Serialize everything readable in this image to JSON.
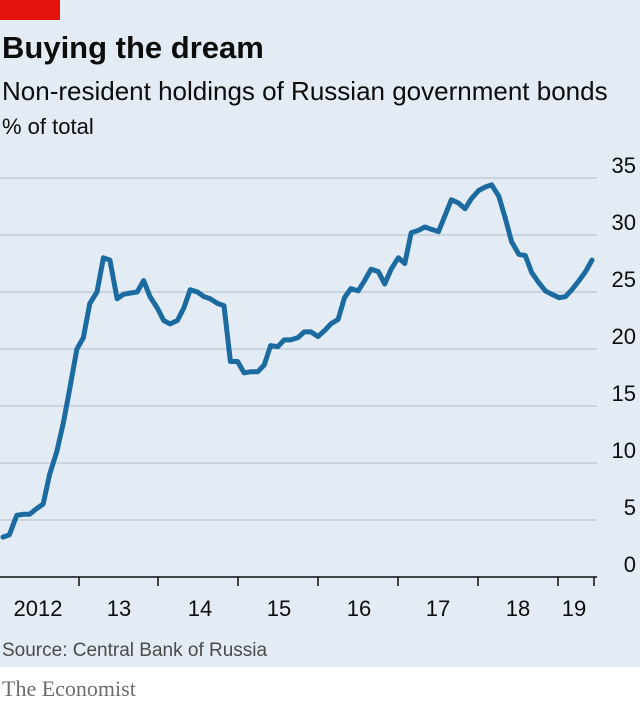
{
  "header": {
    "title": "Buying the dream",
    "subtitle": "Non-resident holdings of Russian government bonds",
    "unit": "% of total"
  },
  "footer": {
    "source": "Source: Central Bank of Russia",
    "brand": "The Economist"
  },
  "colors": {
    "line": "#1b6aa0",
    "grid": "#b8c7d4",
    "accent": "#e3120b",
    "background": "#e3ecf4"
  },
  "chart_data": {
    "type": "line",
    "title": "Buying the dream",
    "subtitle": "Non-resident holdings of Russian government bonds",
    "ylabel": "% of total",
    "ylim": [
      0,
      35
    ],
    "yticks": [
      0,
      5,
      10,
      15,
      20,
      25,
      30,
      35
    ],
    "xlim": [
      2012.0,
      2019.5
    ],
    "xticks": [
      {
        "value": 2012,
        "label": "2012"
      },
      {
        "value": 2013,
        "label": "13"
      },
      {
        "value": 2014,
        "label": "14"
      },
      {
        "value": 2015,
        "label": "15"
      },
      {
        "value": 2016,
        "label": "16"
      },
      {
        "value": 2017,
        "label": "17"
      },
      {
        "value": 2018,
        "label": "18"
      },
      {
        "value": 2019,
        "label": "19"
      }
    ],
    "grid": true,
    "series": [
      {
        "x": [
          2012.0,
          2012.08,
          2012.17,
          2012.25,
          2012.33,
          2012.42,
          2012.5,
          2012.58,
          2012.67,
          2012.75,
          2012.83,
          2012.92,
          2013.0,
          2013.08,
          2013.17,
          2013.25,
          2013.33,
          2013.42,
          2013.5,
          2013.58,
          2013.67,
          2013.75,
          2013.83,
          2013.92,
          2014.0,
          2014.08,
          2014.17,
          2014.25,
          2014.33,
          2014.42,
          2014.5,
          2014.58,
          2014.67,
          2014.75,
          2014.83,
          2014.92,
          2015.0,
          2015.08,
          2015.17,
          2015.25,
          2015.33,
          2015.42,
          2015.5,
          2015.58,
          2015.67,
          2015.75,
          2015.83,
          2015.92,
          2016.0,
          2016.08,
          2016.17,
          2016.25,
          2016.33,
          2016.42,
          2016.5,
          2016.58,
          2016.67,
          2016.75,
          2016.83,
          2016.92,
          2017.0,
          2017.08,
          2017.17,
          2017.25,
          2017.33,
          2017.42,
          2017.5,
          2017.58,
          2017.67,
          2017.75,
          2017.83,
          2017.92,
          2018.0,
          2018.08,
          2018.17,
          2018.25,
          2018.33,
          2018.42,
          2018.5,
          2018.58,
          2018.67,
          2018.75,
          2018.83,
          2018.92,
          2019.0,
          2019.08,
          2019.17,
          2019.25,
          2019.33
        ],
        "values": [
          3.5,
          3.7,
          5.4,
          5.5,
          5.5,
          6.0,
          6.4,
          9.0,
          11.0,
          13.5,
          16.5,
          20.0,
          21.0,
          24.0,
          25.0,
          28.0,
          27.8,
          24.4,
          24.8,
          24.9,
          25.0,
          26.0,
          24.6,
          23.6,
          22.5,
          22.2,
          22.5,
          23.6,
          25.2,
          25.0,
          24.6,
          24.4,
          24.0,
          23.8,
          18.9,
          18.9,
          17.9,
          18.0,
          18.0,
          18.6,
          20.3,
          20.2,
          20.8,
          20.8,
          21.0,
          21.5,
          21.5,
          21.1,
          21.6,
          22.2,
          22.6,
          24.5,
          25.3,
          25.1,
          26.0,
          27.0,
          26.8,
          25.7,
          27.0,
          28.0,
          27.5,
          30.2,
          30.4,
          30.7,
          30.5,
          30.3,
          31.7,
          33.1,
          32.8,
          32.3,
          33.2,
          33.9,
          34.2,
          34.4,
          33.4,
          31.5,
          29.4,
          28.3,
          28.2,
          26.7,
          25.8,
          25.1,
          24.8,
          24.5,
          24.6,
          25.2,
          26.0,
          26.8,
          27.8
        ]
      }
    ]
  }
}
